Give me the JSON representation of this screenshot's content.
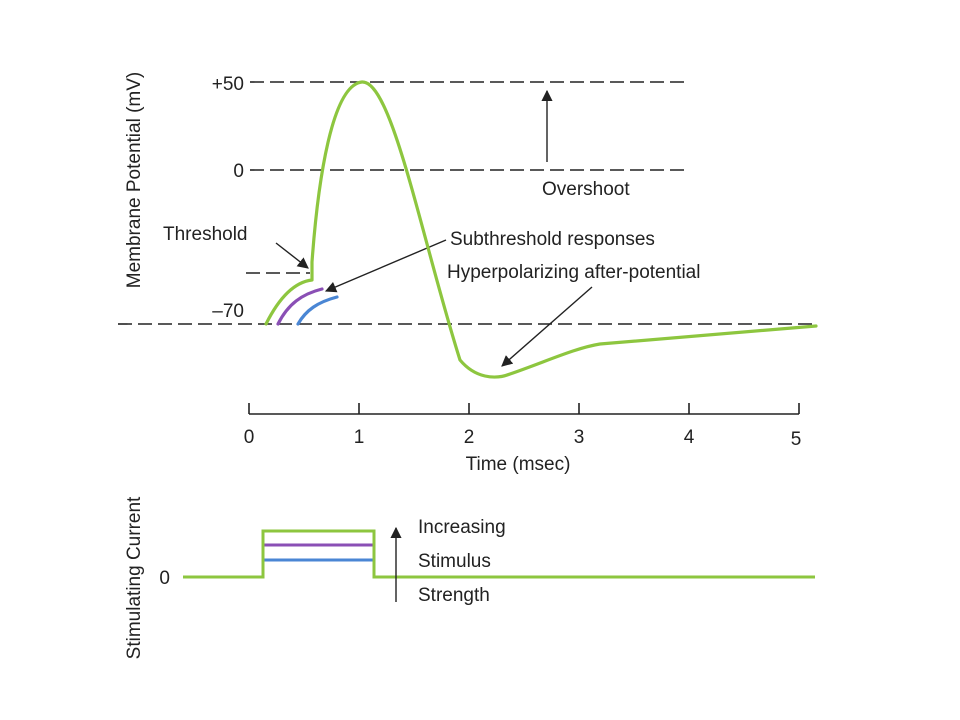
{
  "colors": {
    "action_potential": "#8dc63f",
    "subthreshold_purple": "#8a4fb5",
    "subthreshold_blue": "#4a86d4",
    "ink": "#222222"
  },
  "top_plot": {
    "y_axis_title": "Membrane Potential (mV)",
    "y_labels": {
      "plus50": "+50",
      "zero": "0",
      "minus70": "–70"
    },
    "x_axis_title": "Time (msec)",
    "x_ticks": [
      "0",
      "1",
      "2",
      "3",
      "4",
      "5"
    ],
    "annotations": {
      "threshold": "Threshold",
      "overshoot": "Overshoot",
      "subthreshold": "Subthreshold responses",
      "hyperpolarizing": "Hyperpolarizing after-potential"
    }
  },
  "bottom_plot": {
    "y_axis_title": "Stimulating Current",
    "zero_label": "0",
    "legend_lines": [
      "Increasing",
      "Stimulus",
      "Strength"
    ]
  }
}
